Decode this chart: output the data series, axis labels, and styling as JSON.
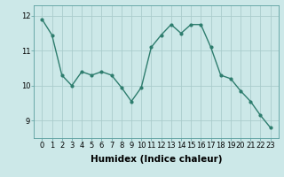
{
  "x": [
    0,
    1,
    2,
    3,
    4,
    5,
    6,
    7,
    8,
    9,
    10,
    11,
    12,
    13,
    14,
    15,
    16,
    17,
    18,
    19,
    20,
    21,
    22,
    23
  ],
  "y": [
    11.9,
    11.45,
    10.3,
    10.0,
    10.4,
    10.3,
    10.4,
    10.3,
    9.95,
    9.55,
    9.95,
    11.1,
    11.45,
    11.75,
    11.5,
    11.75,
    11.75,
    11.1,
    10.3,
    10.2,
    9.85,
    9.55,
    9.15,
    8.8
  ],
  "line_color": "#2e7d6e",
  "marker": "o",
  "marker_size": 2.0,
  "bg_color": "#cce8e8",
  "grid_color": "#aacccc",
  "xlabel": "Humidex (Indice chaleur)",
  "ylim": [
    8.5,
    12.3
  ],
  "yticks": [
    9,
    10,
    11,
    12
  ],
  "xticks": [
    0,
    1,
    2,
    3,
    4,
    5,
    6,
    7,
    8,
    9,
    10,
    11,
    12,
    13,
    14,
    15,
    16,
    17,
    18,
    19,
    20,
    21,
    22,
    23
  ],
  "tick_fontsize": 6,
  "xlabel_fontsize": 7.5,
  "line_width": 1.0
}
